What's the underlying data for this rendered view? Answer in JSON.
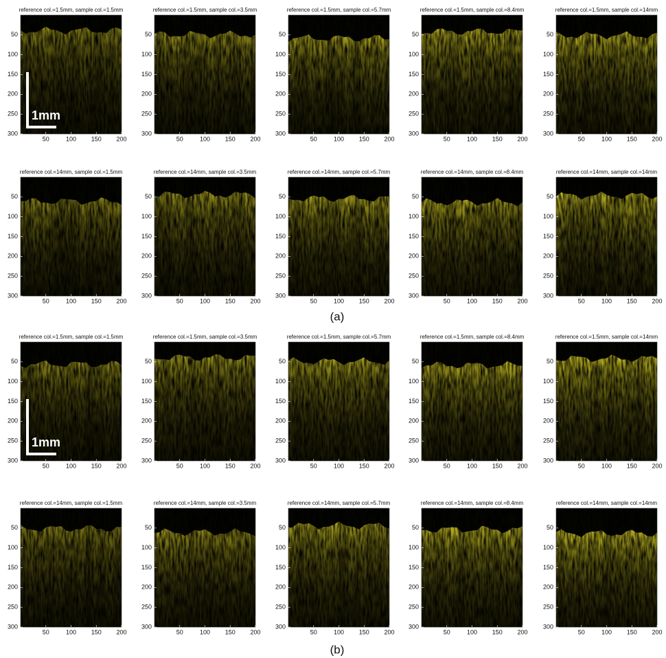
{
  "figures": [
    {
      "label": "(a)",
      "scale_bar": "1mm",
      "panels": [
        {
          "title": "reference col.=1.5mm, sample col.=1.5mm"
        },
        {
          "title": "reference col.=1.5mm, sample col.=3.5mm"
        },
        {
          "title": "reference col.=1.5mm, sample col.=5.7mm"
        },
        {
          "title": "reference col.=1.5mm, sample col.=8.4mm"
        },
        {
          "title": "reference col.=1.5mm, sample col.=14mm"
        },
        {
          "title": "reference col.=14mm, sample col.=1.5mm"
        },
        {
          "title": "reference col.=14mm, sample col.=3.5mm"
        },
        {
          "title": "reference col.=14mm, sample col.=5.7mm"
        },
        {
          "title": "reference col.=14mm, sample col.=8.4mm"
        },
        {
          "title": "reference col.=14mm, sample col.=14mm"
        }
      ]
    },
    {
      "label": "(b)",
      "scale_bar": "1mm",
      "panels": [
        {
          "title": "reference col.=1.5mm, sample col.=1.5mm"
        },
        {
          "title": "reference col.=1.5mm, sample col.=3.5mm"
        },
        {
          "title": "reference col.=1.5mm, sample col.=5.7mm"
        },
        {
          "title": "reference col.=1.5mm, sample col.=8.4mm"
        },
        {
          "title": "reference col.=1.5mm, sample col.=14mm"
        },
        {
          "title": "reference col.=14mm, sample col.=1.5mm"
        },
        {
          "title": "reference col.=14mm, sample col.=3.5mm"
        },
        {
          "title": "reference col.=14mm, sample col.=5.7mm"
        },
        {
          "title": "reference col.=14mm, sample col.=8.4mm"
        },
        {
          "title": "reference col.=14mm, sample col.=14mm"
        }
      ]
    }
  ],
  "axes": {
    "xlim": [
      0,
      200
    ],
    "ylim": [
      0,
      300
    ],
    "xticks": [
      50,
      100,
      150,
      200
    ],
    "yticks": [
      50,
      100,
      150,
      200,
      250,
      300
    ]
  }
}
